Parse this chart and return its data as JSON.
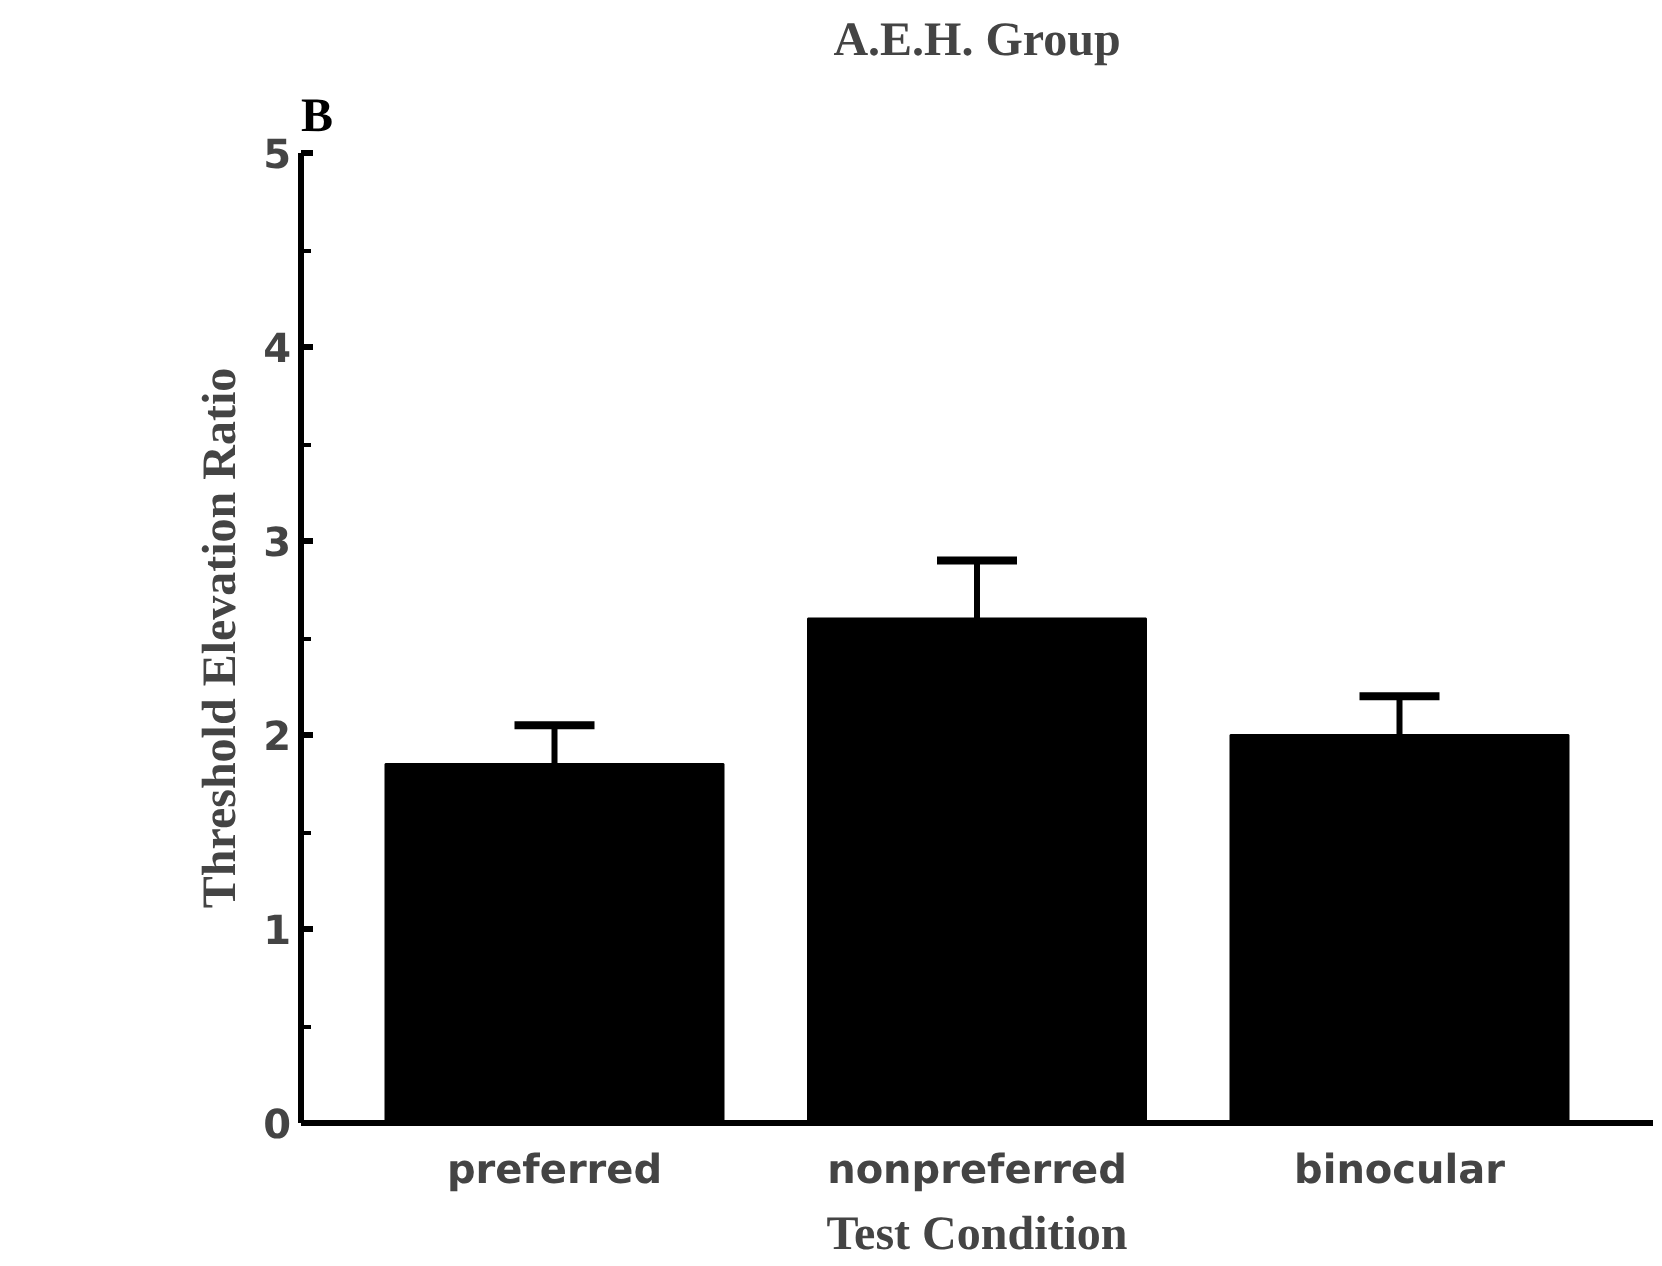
{
  "chart_data": {
    "type": "bar",
    "title": "A.E.H. Group",
    "xlabel": "Test Condition",
    "ylabel": "Threshold Elevation Ratio",
    "categories": [
      "preferred",
      "nonpreferred",
      "binocular"
    ],
    "values": [
      1.85,
      2.6,
      2.0
    ],
    "errors": [
      0.2,
      0.3,
      0.2
    ],
    "color": "#000000",
    "ylim": [
      0,
      5
    ],
    "yticks": [
      0,
      1,
      2,
      3,
      4,
      5
    ],
    "grid": false,
    "annotations": [
      "B"
    ]
  }
}
